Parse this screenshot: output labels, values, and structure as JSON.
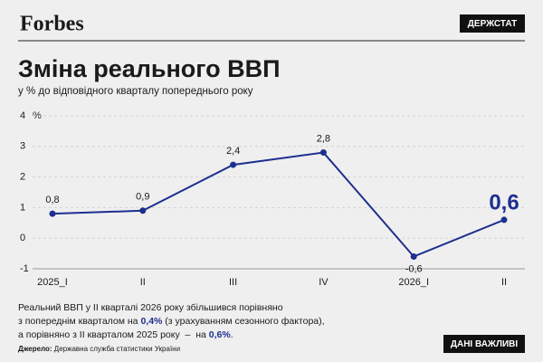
{
  "header": {
    "logo": "Forbes",
    "badge": "ДЕРЖСТАТ"
  },
  "chart_data": {
    "type": "line",
    "title": "Зміна реального ВВП",
    "subtitle": "у % до відповідного кварталу попереднього року",
    "y_unit": "%",
    "categories": [
      "2025_I",
      "II",
      "III",
      "IV",
      "2026_I",
      "II"
    ],
    "values": [
      0.8,
      0.9,
      2.4,
      2.8,
      -0.6,
      0.6
    ],
    "value_labels": [
      "0,8",
      "0,9",
      "2,4",
      "2,8",
      "-0,6",
      "0,6"
    ],
    "color": "#1e2f8f",
    "ylim": [
      -1,
      4
    ],
    "yticks": [
      -1,
      0,
      1,
      2,
      3,
      4
    ],
    "grid": true
  },
  "note": [
    [
      "Реальний ВВП у ІІ кварталі 2026 року збільшився порівняно"
    ],
    [
      "з попереднім кварталом на ",
      "0,4%",
      " (з урахуванням сезонного фактора),"
    ],
    [
      "а порівняно з ІІ кварталом 2025 року  –  на ",
      "0,6%",
      "."
    ]
  ],
  "source": {
    "label": "Джерело:",
    "text": " Державна служба статистики України"
  },
  "footer_badge": "ДАНІ ВАЖЛИВІ"
}
